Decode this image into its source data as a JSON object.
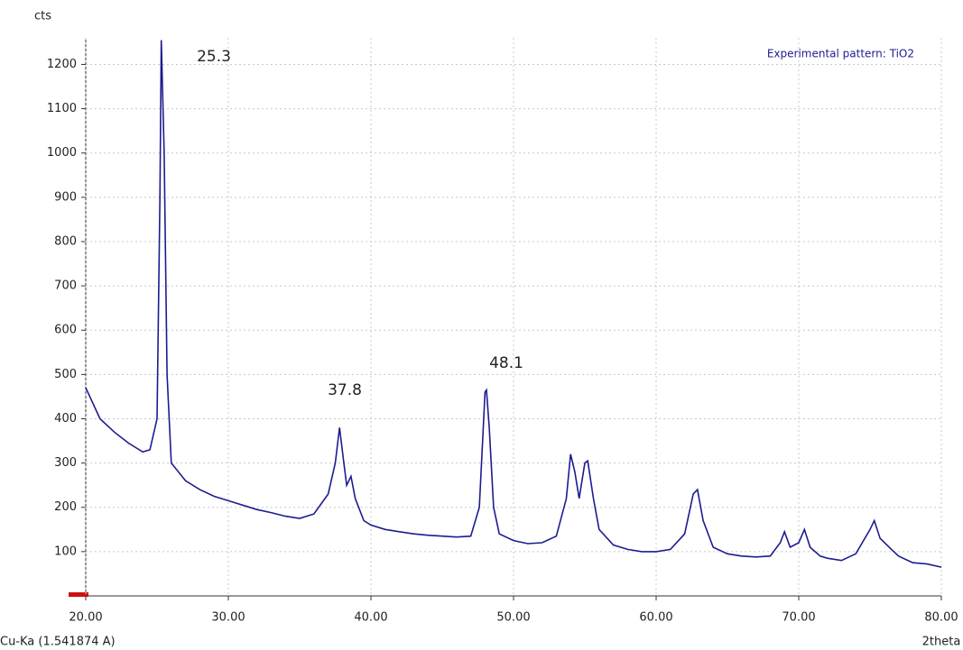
{
  "chart_data": {
    "type": "line",
    "y_label": "cts",
    "x_label": "2theta",
    "x_note": "Cu-Ka (1.541874 A)",
    "annotations": [
      "25.3",
      "37.8",
      "48.1"
    ],
    "xlim": [
      20,
      80
    ],
    "ylim": [
      0,
      1260
    ],
    "xticks": [
      {
        "value": 20,
        "label": "20.00"
      },
      {
        "value": 30,
        "label": "30.00"
      },
      {
        "value": 40,
        "label": "40.00"
      },
      {
        "value": 50,
        "label": "50.00"
      },
      {
        "value": 60,
        "label": "60.00"
      },
      {
        "value": 70,
        "label": "70.00"
      },
      {
        "value": 80,
        "label": "80.00"
      }
    ],
    "yticks": [
      100,
      200,
      300,
      400,
      500,
      600,
      700,
      800,
      900,
      1000,
      1100,
      1200
    ],
    "grid": true,
    "legend": "top-right",
    "x": [
      20,
      21,
      22,
      23,
      24,
      24.5,
      25,
      25.2,
      25.3,
      25.5,
      25.7,
      26,
      27,
      28,
      29,
      30,
      31,
      32,
      33,
      34,
      35,
      36,
      37,
      37.5,
      37.8,
      38.1,
      38.3,
      38.6,
      38.9,
      39.5,
      40,
      41,
      42,
      43,
      44,
      45,
      46,
      47,
      47.6,
      48,
      48.1,
      48.3,
      48.6,
      49,
      50,
      51,
      52,
      53,
      53.7,
      54,
      54.3,
      54.6,
      55,
      55.2,
      55.6,
      56,
      57,
      58,
      59,
      60,
      61,
      62,
      62.6,
      62.9,
      63.3,
      64,
      65,
      66,
      67,
      68,
      68.7,
      69,
      69.4,
      70,
      70.4,
      70.8,
      71.5,
      72,
      73,
      74,
      75,
      75.3,
      75.7,
      76.5,
      77,
      78,
      79,
      80
    ],
    "series": [
      {
        "name": "Experimental pattern: TiO2",
        "color": "#1c1c8f",
        "values": [
          470,
          400,
          370,
          345,
          325,
          330,
          400,
          900,
          1255,
          1000,
          500,
          300,
          260,
          240,
          225,
          215,
          205,
          195,
          188,
          180,
          175,
          185,
          230,
          300,
          380,
          300,
          250,
          270,
          220,
          170,
          160,
          150,
          145,
          140,
          137,
          135,
          133,
          135,
          200,
          460,
          465,
          380,
          200,
          140,
          125,
          118,
          120,
          135,
          220,
          320,
          280,
          220,
          300,
          305,
          220,
          150,
          115,
          105,
          100,
          100,
          105,
          140,
          230,
          240,
          170,
          110,
          95,
          90,
          88,
          90,
          120,
          145,
          110,
          120,
          150,
          110,
          90,
          85,
          80,
          95,
          150,
          170,
          130,
          105,
          90,
          75,
          72,
          65
        ]
      }
    ]
  }
}
